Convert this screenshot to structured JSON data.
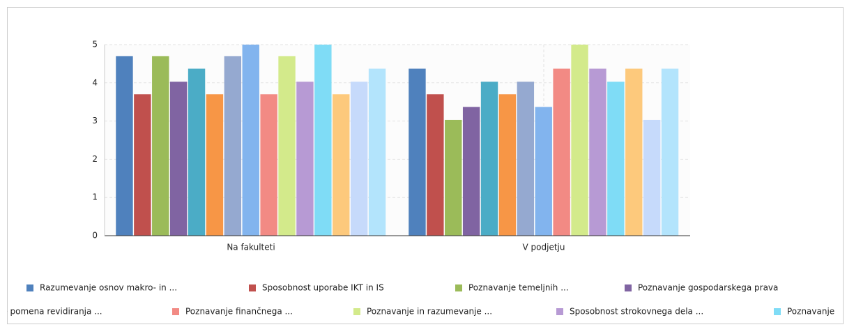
{
  "chart_data": {
    "type": "bar",
    "categories": [
      "Na fakulteti",
      "V podjetju"
    ],
    "ylim": [
      0,
      5
    ],
    "yticks": [
      0,
      1,
      2,
      3,
      4,
      5
    ],
    "grid": true,
    "series": [
      {
        "name": "Razumevanje osnov makro- in ...",
        "color": "#4f81bd",
        "values": [
          4.7,
          4.37
        ]
      },
      {
        "name": "Sposobnost uporabe IKT in IS",
        "color": "#c0504d",
        "values": [
          3.7,
          3.7
        ]
      },
      {
        "name": "Poznavanje temeljnih ...",
        "color": "#9bbb59",
        "values": [
          4.7,
          3.03
        ]
      },
      {
        "name": "Poznavanje gospodarskega prava",
        "color": "#8064a2",
        "values": [
          4.03,
          3.37
        ]
      },
      {
        "color": "#4bacc6",
        "values": [
          4.37,
          4.03
        ]
      },
      {
        "color": "#f79646",
        "values": [
          3.7,
          3.7
        ]
      },
      {
        "color": "#95a9d0",
        "values": [
          4.7,
          4.03
        ]
      },
      {
        "name": "je pomena revidiranja ...",
        "color": "#82b4ee",
        "values": [
          5,
          3.37
        ]
      },
      {
        "name": "Poznavanje finančnega ...",
        "color": "#f28a84",
        "values": [
          3.7,
          4.37
        ]
      },
      {
        "name": "Poznavanje in razumevanje ...",
        "color": "#d3ea8b",
        "values": [
          4.7,
          5
        ]
      },
      {
        "name": "Sposobnost strokovnega dela ...",
        "color": "#b79ad4",
        "values": [
          4.03,
          4.37
        ]
      },
      {
        "name": "Poznavanje",
        "color": "#7fdcf6",
        "values": [
          5,
          4.03
        ]
      },
      {
        "color": "#fdc97c",
        "values": [
          3.7,
          4.37
        ]
      },
      {
        "color": "#c6dafb",
        "values": [
          4.03,
          3.03
        ]
      },
      {
        "color": "#b3e4fc",
        "values": [
          4.37,
          4.37
        ]
      }
    ]
  }
}
